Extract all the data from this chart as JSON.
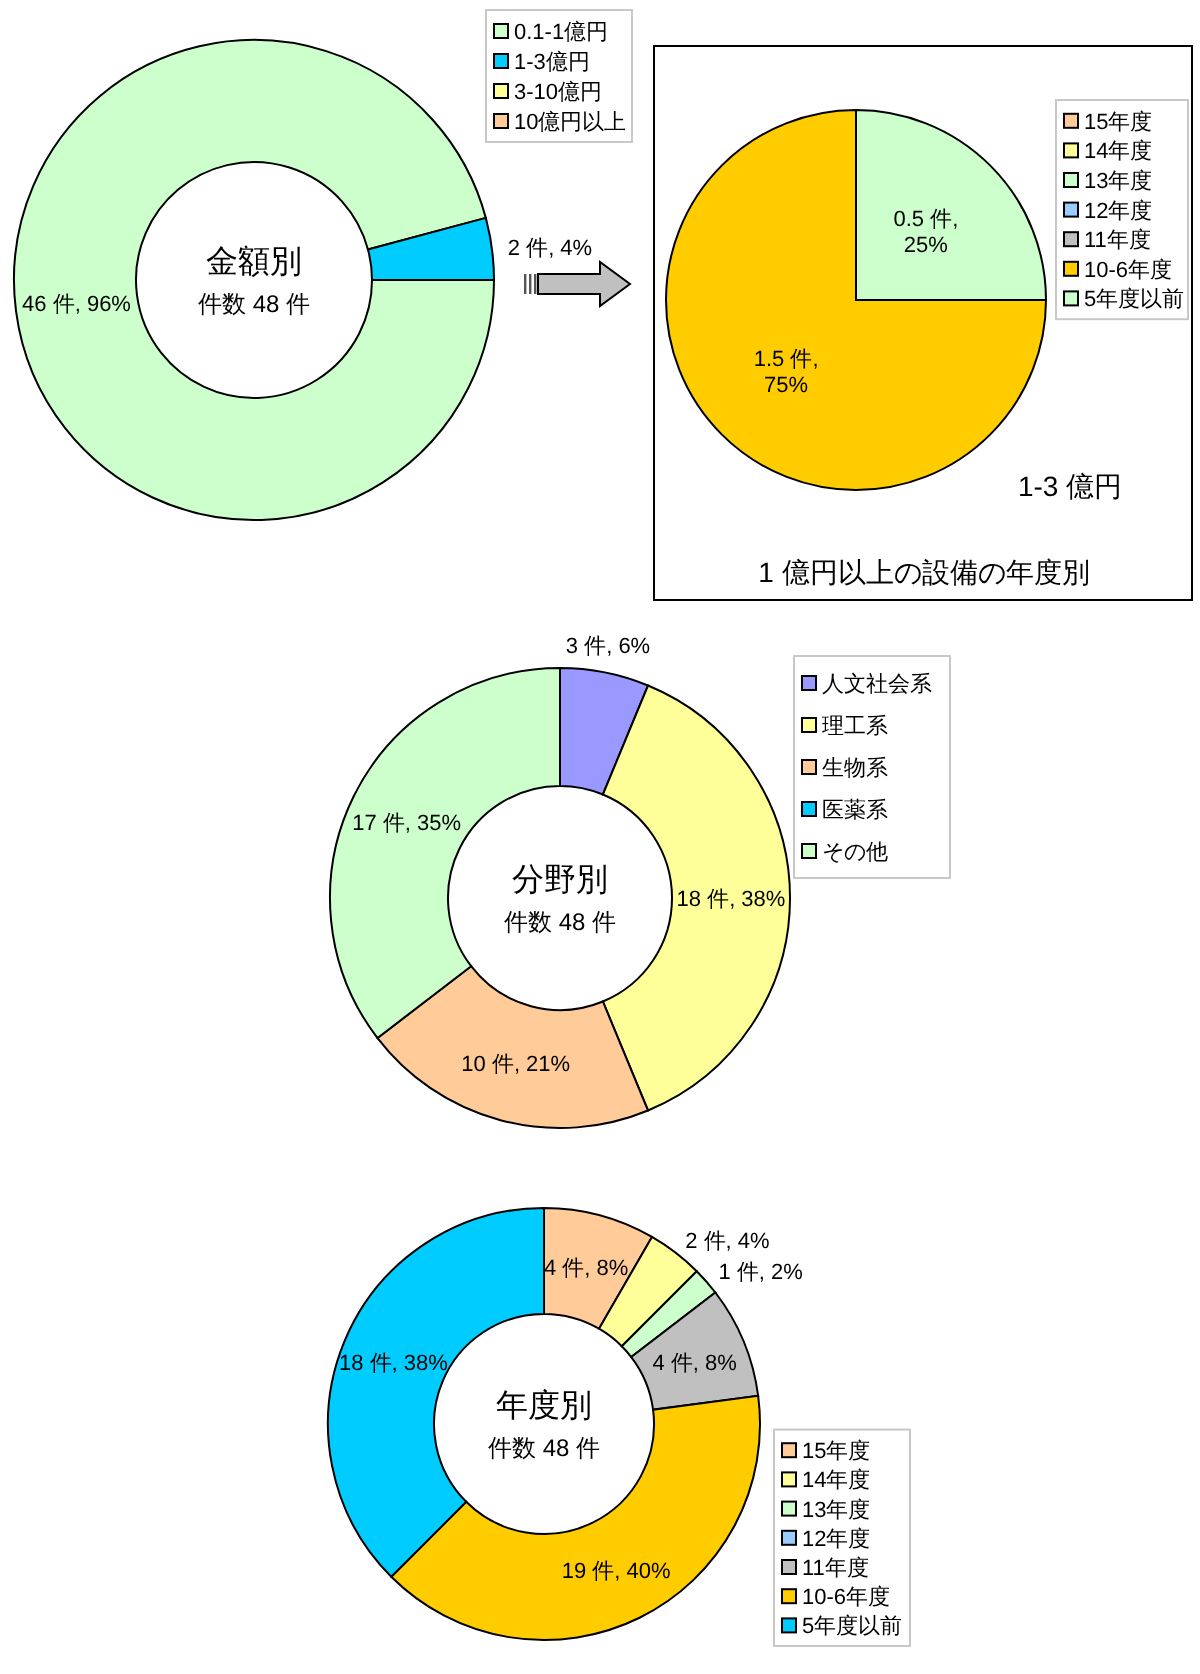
{
  "chart_data": [
    {
      "type": "donut",
      "title": "金額別",
      "subtitle": "件数 48 件",
      "categories": [
        "0.1-1億円",
        "1-3億円",
        "3-10億円",
        "10億円以上"
      ],
      "values": [
        46,
        2,
        0,
        0
      ],
      "colors": [
        "#ccffcc",
        "#00ccff",
        "#ffff99",
        "#ffcc99"
      ],
      "value_labels": [
        "46 件, 96%",
        "2 件, 4%",
        null,
        null
      ],
      "legend": "top right"
    },
    {
      "type": "pie",
      "title": "1 億円以上の設備の年度別",
      "subtitle": "1-3 億円",
      "categories": [
        "15年度",
        "14年度",
        "13年度",
        "12年度",
        "11年度",
        "10-6年度",
        "5年度以前"
      ],
      "values": [
        0,
        0,
        0,
        0,
        0,
        1.5,
        0.5
      ],
      "colors": [
        "#ffcc99",
        "#ffff99",
        "#ccffcc",
        "#99ccff",
        "#c0c0c0",
        "#ffcc00",
        "#ccffcc"
      ],
      "value_labels": [
        null,
        null,
        null,
        null,
        null,
        "1.5 件, 75%",
        "0.5 件, 25%"
      ],
      "legend": "top right"
    },
    {
      "type": "donut",
      "title": "分野別",
      "subtitle": "件数 48 件",
      "categories": [
        "人文社会系",
        "理工系",
        "生物系",
        "医薬系",
        "その他"
      ],
      "values": [
        3,
        18,
        10,
        0,
        17
      ],
      "colors": [
        "#9999ff",
        "#ffff99",
        "#ffcc99",
        "#00ccff",
        "#ccffcc"
      ],
      "value_labels": [
        "3 件, 6%",
        "18 件, 38%",
        "10 件, 21%",
        null,
        "17 件, 35%"
      ],
      "legend": "top right"
    },
    {
      "type": "donut",
      "title": "年度別",
      "subtitle": "件数 48 件",
      "categories": [
        "15年度",
        "14年度",
        "13年度",
        "12年度",
        "11年度",
        "10-6年度",
        "5年度以前"
      ],
      "values": [
        4,
        2,
        1,
        0,
        4,
        19,
        18
      ],
      "colors": [
        "#ffcc99",
        "#ffff99",
        "#ccffcc",
        "#99ccff",
        "#c0c0c0",
        "#ffcc00",
        "#00ccff"
      ],
      "value_labels": [
        "4 件, 8%",
        "2 件, 4%",
        "1 件, 2%",
        null,
        "4 件, 8%",
        "19 件, 40%",
        "18 件, 38%"
      ],
      "legend": "bottom right"
    }
  ]
}
